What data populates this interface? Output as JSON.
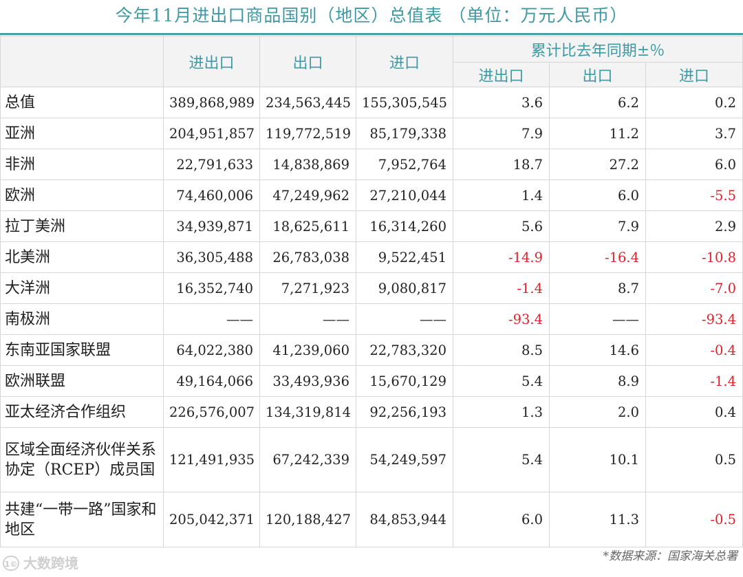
{
  "title": "今年11月进出口商品国别（地区）总值表  （单位：万元人民币）",
  "headers": {
    "total": "进出口",
    "export": "出口",
    "import": "进口",
    "yoy_group": "累计比去年同期±％",
    "yoy_total": "进出口",
    "yoy_export": "出口",
    "yoy_import": "进口"
  },
  "rows": [
    {
      "region": "总值",
      "total": "389,868,989",
      "export": "234,563,445",
      "import": "155,305,545",
      "yoy_total": "3.6",
      "yoy_export": "6.2",
      "yoy_import": "0.2"
    },
    {
      "region": "亚洲",
      "total": "204,951,857",
      "export": "119,772,519",
      "import": "85,179,338",
      "yoy_total": "7.9",
      "yoy_export": "11.2",
      "yoy_import": "3.7"
    },
    {
      "region": "非洲",
      "total": "22,791,633",
      "export": "14,838,869",
      "import": "7,952,764",
      "yoy_total": "18.7",
      "yoy_export": "27.2",
      "yoy_import": "6.0"
    },
    {
      "region": "欧洲",
      "total": "74,460,006",
      "export": "47,249,962",
      "import": "27,210,044",
      "yoy_total": "1.4",
      "yoy_export": "6.0",
      "yoy_import": "-5.5"
    },
    {
      "region": "拉丁美洲",
      "total": "34,939,871",
      "export": "18,625,611",
      "import": "16,314,260",
      "yoy_total": "5.6",
      "yoy_export": "7.9",
      "yoy_import": "2.9"
    },
    {
      "region": "北美洲",
      "total": "36,305,488",
      "export": "26,783,038",
      "import": "9,522,451",
      "yoy_total": "-14.9",
      "yoy_export": "-16.4",
      "yoy_import": "-10.8"
    },
    {
      "region": "大洋洲",
      "total": "16,352,740",
      "export": "7,271,923",
      "import": "9,080,817",
      "yoy_total": "-1.4",
      "yoy_export": "8.7",
      "yoy_import": "-7.0"
    },
    {
      "region": "南极洲",
      "total": "——",
      "export": "——",
      "import": "——",
      "yoy_total": "-93.4",
      "yoy_export": "——",
      "yoy_import": "-93.4"
    },
    {
      "region": "东南亚国家联盟",
      "total": "64,022,380",
      "export": "41,239,060",
      "import": "22,783,320",
      "yoy_total": "8.5",
      "yoy_export": "14.6",
      "yoy_import": "-0.4"
    },
    {
      "region": "欧洲联盟",
      "total": "49,164,066",
      "export": "33,493,936",
      "import": "15,670,129",
      "yoy_total": "5.4",
      "yoy_export": "8.9",
      "yoy_import": "-1.4"
    },
    {
      "region": "亚太经济合作组织",
      "total": "226,576,007",
      "export": "134,319,814",
      "import": "92,256,193",
      "yoy_total": "1.3",
      "yoy_export": "2.0",
      "yoy_import": "0.4"
    },
    {
      "region": "区域全面经济伙伴关系协定（RCEP）成员国",
      "total": "121,491,935",
      "export": "67,242,339",
      "import": "54,249,597",
      "yoy_total": "5.4",
      "yoy_export": "10.1",
      "yoy_import": "0.5"
    },
    {
      "region": "共建“一带一路”国家和地区",
      "total": "205,042,371",
      "export": "120,188,427",
      "import": "84,853,944",
      "yoy_total": "6.0",
      "yoy_export": "11.3",
      "yoy_import": "-0.5"
    }
  ],
  "colors": {
    "header_text": "#3e9aa2",
    "negative": "#e0212b",
    "header_bg": "#f3f3f3"
  },
  "source": "*数据来源：国家海关总署",
  "watermark": "大数跨境",
  "watermark_icon": "logo-icon"
}
